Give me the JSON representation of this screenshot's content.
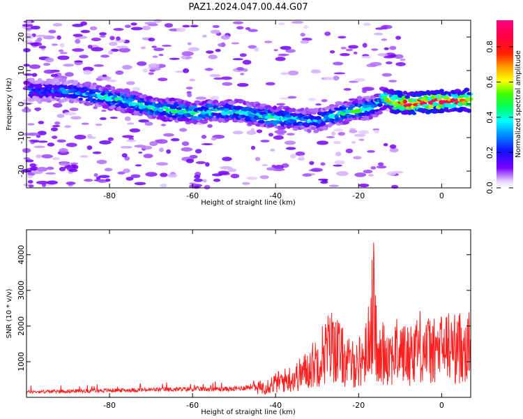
{
  "title": "PAZ1.2024.047.00.44.G07",
  "chart_data": [
    {
      "type": "heatmap",
      "xlabel": "Height of straight line (km)",
      "ylabel": "Frequency (Hz)",
      "xlim": [
        -100,
        7
      ],
      "ylim": [
        -25,
        25
      ],
      "xticks": [
        -80,
        -60,
        -40,
        -20,
        0
      ],
      "yticks": [
        -20,
        -10,
        0,
        10,
        20
      ],
      "colorbar": {
        "label": "Normalized spectral amplitude",
        "range": [
          0,
          0.95
        ],
        "ticks": [
          0.0,
          0.2,
          0.4,
          0.6,
          0.8
        ],
        "tick_labels": [
          "0.0",
          "0.2",
          "0.4",
          "0.6",
          "0.8"
        ]
      },
      "ridge": {
        "x": [
          -98,
          -90,
          -80,
          -70,
          -60,
          -50,
          -40,
          -30,
          -25,
          -20,
          -16,
          -14,
          -10,
          -5,
          0,
          7
        ],
        "frequency": [
          4,
          4,
          2,
          -1,
          -2.5,
          -2,
          -4,
          -5,
          -3,
          -1.5,
          -1,
          2,
          0,
          0.5,
          1,
          1
        ],
        "peak_amplitude": [
          0.25,
          0.3,
          0.42,
          0.45,
          0.47,
          0.4,
          0.45,
          0.35,
          0.4,
          0.5,
          0.35,
          0.55,
          0.85,
          0.9,
          0.85,
          0.75
        ]
      }
    },
    {
      "type": "line",
      "xlabel": "Height of straight line (km)",
      "ylabel": "SNR (10 * v/v)",
      "xlim": [
        -100,
        7
      ],
      "ylim": [
        0,
        4700
      ],
      "xticks": [
        -80,
        -60,
        -40,
        -20,
        0
      ],
      "yticks": [
        1000,
        2000,
        3000,
        4000
      ],
      "series": [
        {
          "color": "#ff2020",
          "envelope_x": [
            -100,
            -80,
            -60,
            -50,
            -45,
            -40,
            -35,
            -32,
            -30,
            -28,
            -26,
            -24,
            -22,
            -20,
            -18,
            -16.5,
            -16,
            -15.5,
            -14,
            -12,
            -10,
            -8,
            -6,
            -4,
            -2,
            0,
            2,
            4,
            5,
            6,
            7
          ],
          "envelope_y": [
            200,
            250,
            300,
            300,
            400,
            700,
            1000,
            1400,
            1800,
            2300,
            2600,
            2000,
            1600,
            1700,
            2200,
            4600,
            3800,
            1600,
            2300,
            2100,
            2300,
            2000,
            2600,
            2400,
            2200,
            2400,
            2500,
            2300,
            2700,
            2500,
            2400
          ]
        }
      ]
    }
  ]
}
